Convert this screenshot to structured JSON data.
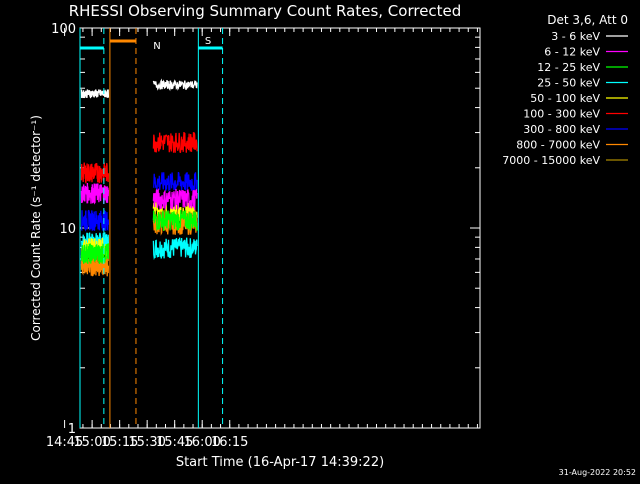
{
  "chart_data": {
    "type": "line",
    "title": "RHESSI Observing Summary Count Rates, Corrected",
    "ylabel": "Corrected Count Rate (s⁻¹ detector⁻¹)",
    "xlabel": "Start Time (16-Apr-17 14:39:22)",
    "ylog": true,
    "ylim": [
      1,
      100
    ],
    "xlim_minutes": [
      14,
      232
    ],
    "x_unit": "minutes since 14:39:22",
    "x_ticks": [
      {
        "label": "14:45",
        "value": 5.6
      },
      {
        "label": "15:00",
        "value": 20.6
      },
      {
        "label": "15:15",
        "value": 35.6
      },
      {
        "label": "15:30",
        "value": 50.6
      },
      {
        "label": "15:45",
        "value": 65.6
      },
      {
        "label": "16:00",
        "value": 80.6
      },
      {
        "label": "16:15",
        "value": 95.6
      }
    ],
    "y_ticks": [
      {
        "label": "100",
        "value": 100
      },
      {
        "label": "10",
        "value": 10
      },
      {
        "label": "1",
        "value": 1
      }
    ],
    "legend_title": "Det 3,6, Att 0",
    "legend_position": "right",
    "series": [
      {
        "name": "3 - 6 keV",
        "color": "#ffffff",
        "segments": [
          [
            19,
            -0.02
          ],
          [
            34,
            0.0
          ]
        ],
        "levels": [
          47,
          52
        ]
      },
      {
        "name": "6 - 12 keV",
        "color": "#ff00ff",
        "levels": [
          15,
          14
        ]
      },
      {
        "name": "12 - 25 keV",
        "color": "#00ff00",
        "levels": [
          7.5,
          11
        ]
      },
      {
        "name": "25 - 50 keV",
        "color": "#00ffff",
        "levels": [
          8.5,
          8
        ]
      },
      {
        "name": "50 - 100 keV",
        "color": "#ffff00",
        "levels": [
          8,
          12
        ]
      },
      {
        "name": "100 - 300 keV",
        "color": "#ff0000",
        "levels": [
          19,
          27
        ]
      },
      {
        "name": "300 - 800 keV",
        "color": "#0000ff",
        "levels": [
          11,
          17
        ]
      },
      {
        "name": "800 - 7000 keV",
        "color": "#ff8800",
        "levels": [
          6.5,
          10.5
        ]
      },
      {
        "name": "7000 - 15000 keV",
        "color": "#aa8800",
        "levels": [
          7,
          11
        ]
      }
    ],
    "intervals": [
      {
        "t0": 14.8,
        "t1": 29.5
      },
      {
        "t0": 54.0,
        "t1": 77.8
      }
    ],
    "markers": {
      "night_label": "N",
      "saa_label": "S",
      "night_color": "#00ffff",
      "saa_color": "#ff8800"
    },
    "timestamp": "31-Aug-2022 20:52"
  }
}
